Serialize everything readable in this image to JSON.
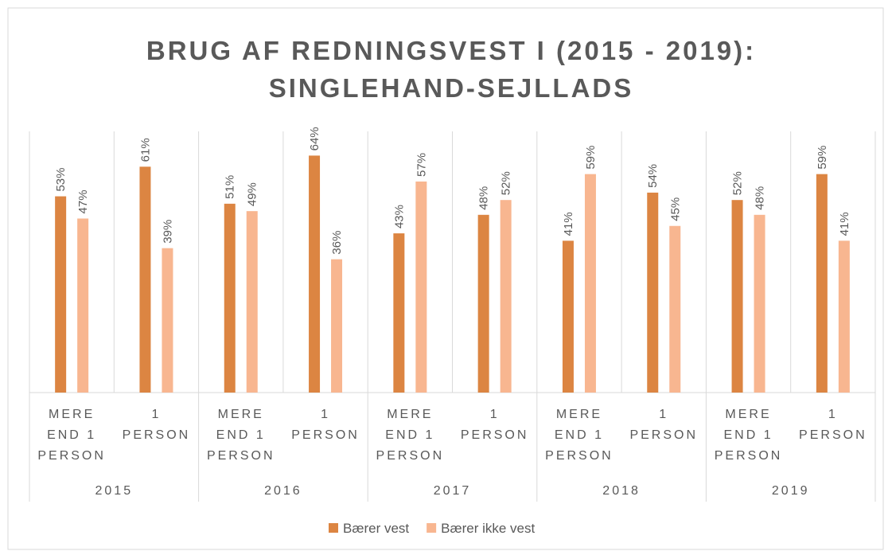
{
  "chart_data": {
    "type": "bar",
    "title": "BRUG AF REDNINGSVEST I (2015 - 2019):",
    "subtitle": "SINGLEHAND-SEJLLADS",
    "categories": [
      "MERE END 1 PERSON",
      "1 PERSON",
      "MERE END 1 PERSON",
      "1 PERSON",
      "MERE END 1 PERSON",
      "1 PERSON",
      "MERE END 1 PERSON",
      "1 PERSON",
      "MERE END 1 PERSON",
      "1 PERSON"
    ],
    "groups": [
      "2015",
      "2016",
      "2017",
      "2018",
      "2019"
    ],
    "series": [
      {
        "name": "Bærer vest",
        "color": "#dc8542",
        "values": [
          53,
          61,
          51,
          64,
          43,
          48,
          41,
          54,
          52,
          59
        ],
        "value_labels": [
          "53%",
          "61%",
          "51%",
          "64%",
          "43%",
          "48%",
          "41%",
          "54%",
          "52%",
          "59%"
        ]
      },
      {
        "name": "Bærer ikke vest",
        "color": "#f8b690",
        "values": [
          47,
          39,
          49,
          36,
          57,
          52,
          59,
          45,
          48,
          41
        ],
        "value_labels": [
          "47%",
          "39%",
          "49%",
          "36%",
          "57%",
          "52%",
          "59%",
          "45%",
          "48%",
          "41%"
        ]
      }
    ],
    "legend": "bottom"
  }
}
